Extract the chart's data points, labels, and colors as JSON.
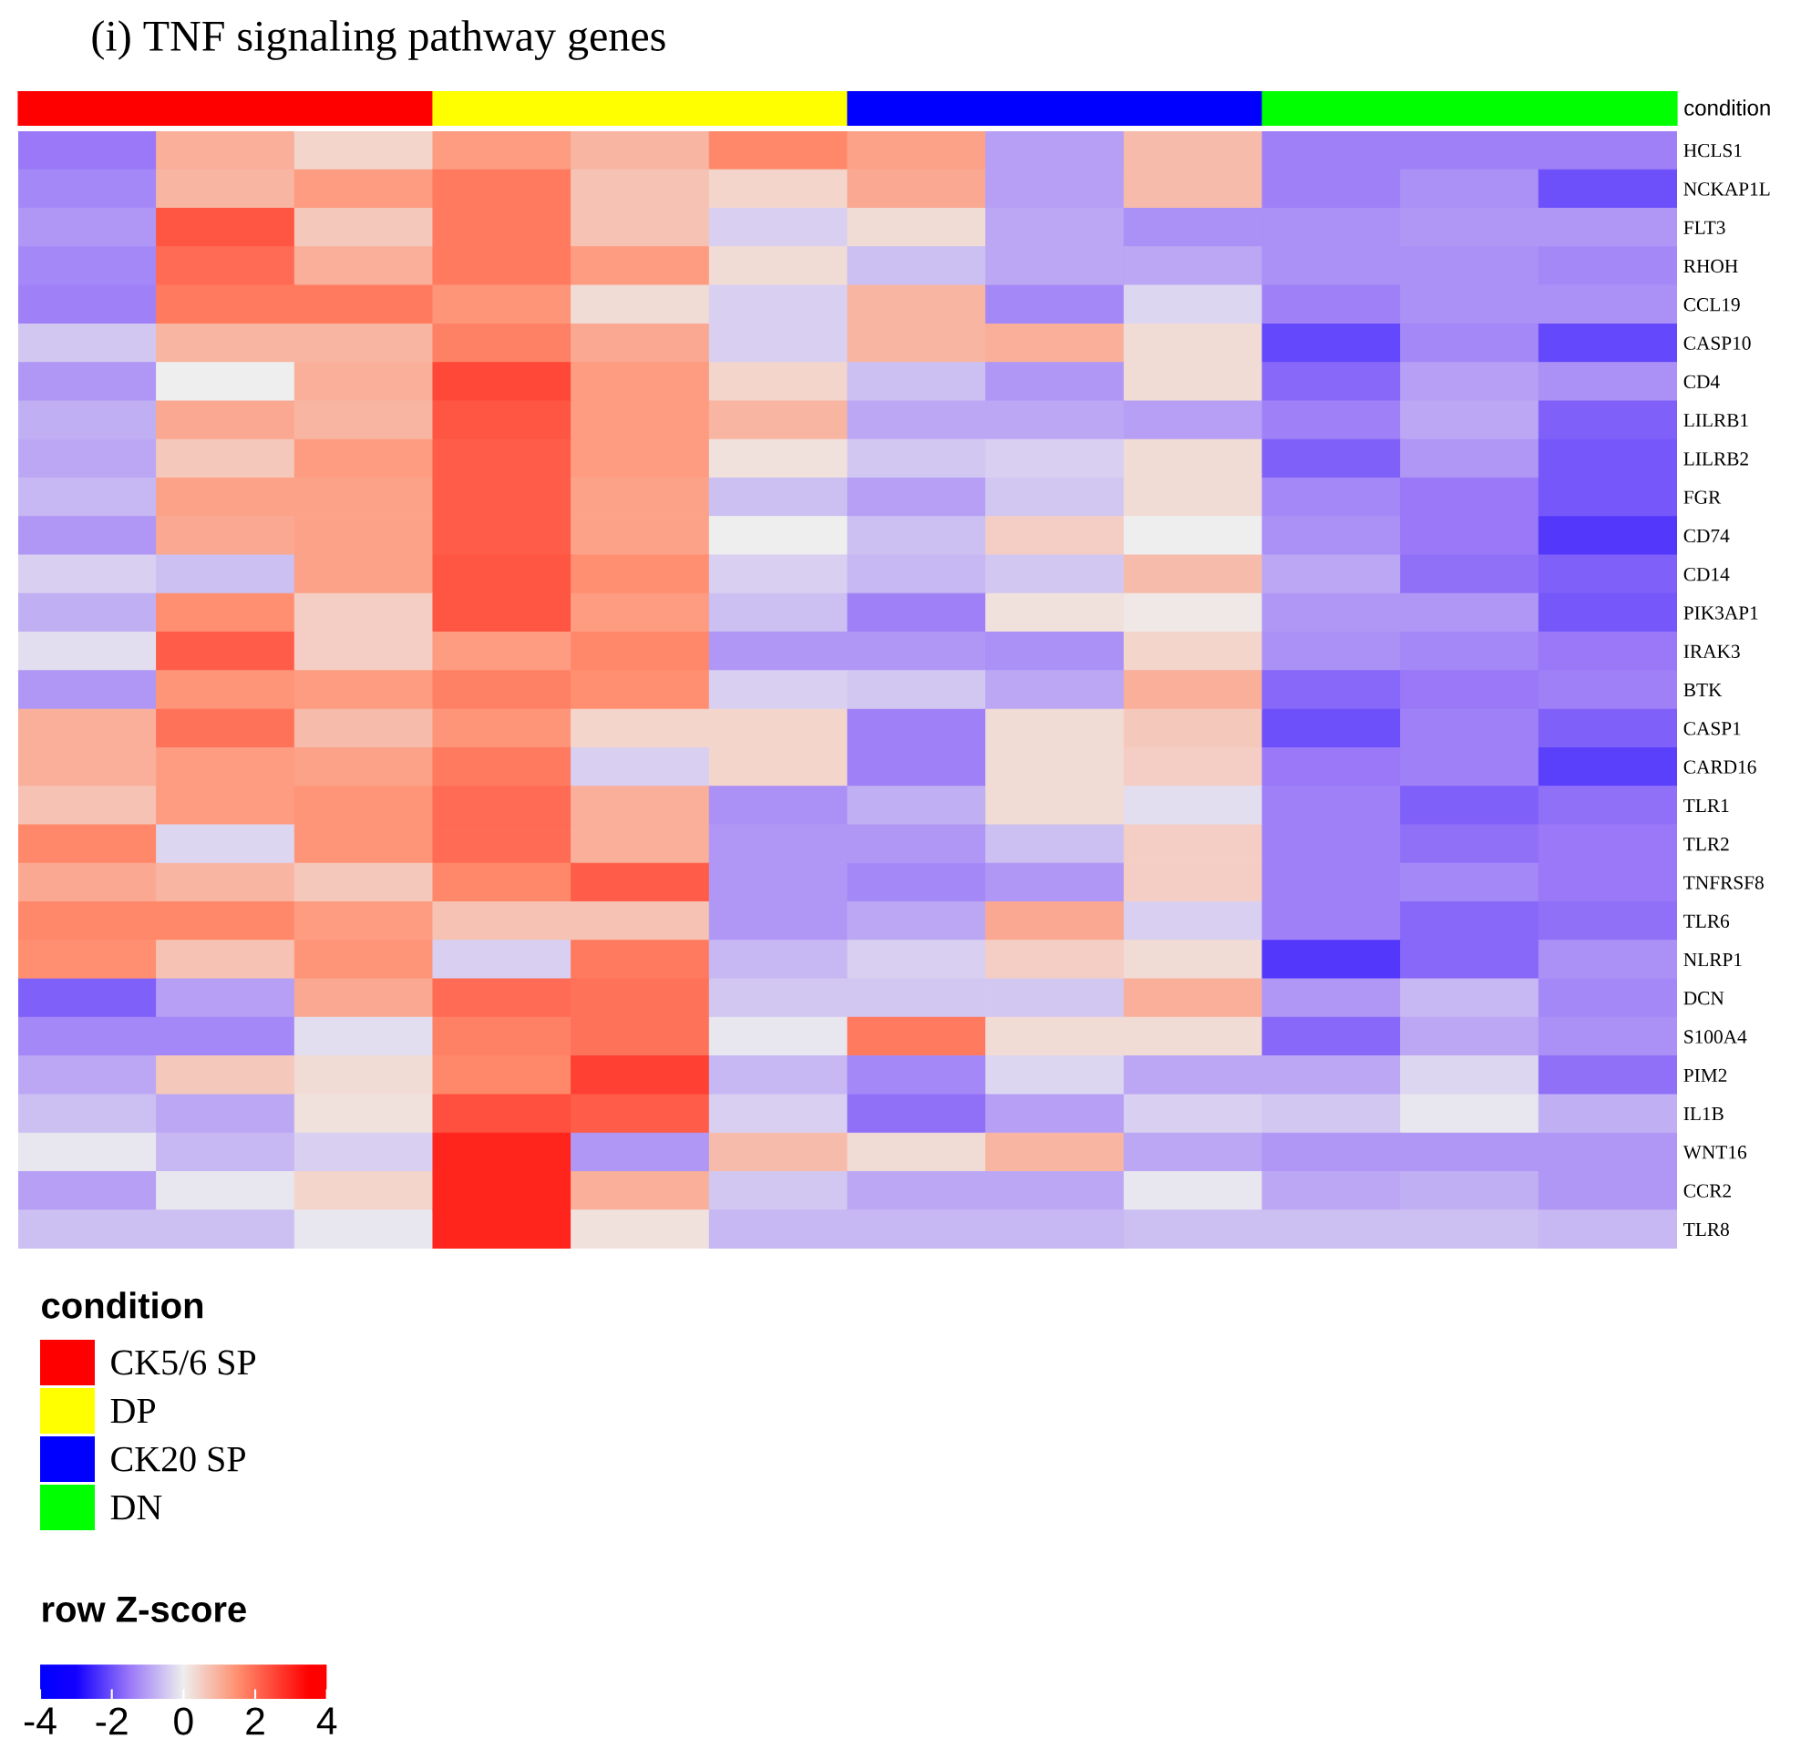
{
  "chart_data": [
    {
      "type": "heatmap",
      "title": "(i) TNF signaling pathway genes",
      "categories": [
        null,
        null,
        null,
        null,
        null,
        null,
        null,
        null,
        null,
        null,
        null,
        null
      ],
      "y_categories": [
        "HCLS1",
        "NCKAP1L",
        "FLT3",
        "RHOH",
        "CCL19",
        "CASP10",
        "CD4",
        "LILRB1",
        "LILRB2",
        "FGR",
        "CD74",
        "CD14",
        "PIK3AP1",
        "IRAK3",
        "BTK",
        "CASP1",
        "CARD16",
        "TLR1",
        "TLR2",
        "TNFRSF8",
        "TLR6",
        "NLRP1",
        "DCN",
        "S100A4",
        "PIM2",
        "IL1B",
        "WNT16",
        "CCR2",
        "TLR8"
      ],
      "cells": [
        [
          -1.5,
          1.0,
          0.4,
          1.3,
          0.9,
          1.6,
          1.2,
          -1.0,
          0.8,
          -1.4,
          -1.4,
          -1.4
        ],
        [
          -1.3,
          0.9,
          1.3,
          1.8,
          0.7,
          0.4,
          1.1,
          -1.0,
          0.8,
          -1.4,
          -1.2,
          -2.0
        ],
        [
          -1.1,
          2.3,
          0.6,
          1.8,
          0.7,
          -0.4,
          0.3,
          -0.9,
          -1.2,
          -1.2,
          -1.1,
          -1.1
        ],
        [
          -1.3,
          2.0,
          1.0,
          1.8,
          1.3,
          0.3,
          -0.6,
          -0.9,
          -0.9,
          -1.2,
          -1.2,
          -1.3
        ],
        [
          -1.4,
          1.8,
          1.8,
          1.4,
          0.3,
          -0.4,
          0.9,
          -1.3,
          -0.3,
          -1.4,
          -1.2,
          -1.2
        ],
        [
          -0.5,
          0.9,
          0.9,
          1.7,
          1.1,
          -0.4,
          0.9,
          1.0,
          0.3,
          -2.1,
          -1.3,
          -2.1
        ],
        [
          -1.1,
          0.0,
          1.0,
          2.5,
          1.3,
          0.4,
          -0.6,
          -1.1,
          0.3,
          -1.7,
          -1.0,
          -1.2
        ],
        [
          -0.8,
          1.1,
          0.9,
          2.3,
          1.3,
          0.9,
          -0.9,
          -0.9,
          -1.0,
          -1.4,
          -0.9,
          -1.8
        ],
        [
          -0.9,
          0.6,
          1.3,
          2.2,
          1.3,
          0.2,
          -0.5,
          -0.4,
          0.3,
          -1.8,
          -1.1,
          -1.9
        ],
        [
          -0.7,
          1.2,
          1.2,
          2.2,
          1.2,
          -0.6,
          -1.0,
          -0.5,
          0.3,
          -1.3,
          -1.5,
          -1.9
        ],
        [
          -1.1,
          1.1,
          1.2,
          2.2,
          1.2,
          0.0,
          -0.6,
          0.5,
          0.0,
          -1.2,
          -1.5,
          -2.3
        ],
        [
          -0.4,
          -0.6,
          1.2,
          2.3,
          1.5,
          -0.4,
          -0.7,
          -0.5,
          0.8,
          -0.9,
          -1.6,
          -1.8
        ],
        [
          -0.8,
          1.5,
          0.5,
          2.3,
          1.3,
          -0.6,
          -1.4,
          0.2,
          0.1,
          -1.1,
          -1.1,
          -1.9
        ],
        [
          -0.2,
          2.2,
          0.5,
          1.3,
          1.6,
          -1.1,
          -1.1,
          -1.2,
          0.4,
          -1.2,
          -1.3,
          -1.5
        ],
        [
          -1.1,
          1.4,
          1.3,
          1.7,
          1.5,
          -0.4,
          -0.5,
          -0.9,
          1.0,
          -1.7,
          -1.5,
          -1.4
        ],
        [
          1.0,
          1.9,
          0.8,
          1.4,
          0.4,
          0.4,
          -1.4,
          0.3,
          0.6,
          -2.0,
          -1.4,
          -1.8
        ],
        [
          1.0,
          1.3,
          1.2,
          1.8,
          -0.4,
          0.4,
          -1.4,
          0.3,
          0.5,
          -1.5,
          -1.4,
          -2.2
        ],
        [
          0.7,
          1.3,
          1.4,
          2.0,
          1.0,
          -1.2,
          -0.8,
          0.3,
          -0.2,
          -1.4,
          -1.8,
          -1.6
        ],
        [
          1.6,
          -0.3,
          1.4,
          2.0,
          1.0,
          -1.1,
          -1.1,
          -0.6,
          0.5,
          -1.4,
          -1.6,
          -1.5
        ],
        [
          1.1,
          0.9,
          0.6,
          1.6,
          2.2,
          -1.1,
          -1.3,
          -1.1,
          0.5,
          -1.4,
          -1.3,
          -1.5
        ],
        [
          1.6,
          1.6,
          1.3,
          0.7,
          0.7,
          -1.1,
          -0.9,
          1.1,
          -0.4,
          -1.4,
          -1.7,
          -1.6
        ],
        [
          1.5,
          0.7,
          1.4,
          -0.4,
          1.8,
          -0.7,
          -0.4,
          0.5,
          0.3,
          -2.3,
          -1.7,
          -1.2
        ],
        [
          -1.8,
          -1.0,
          1.1,
          2.0,
          1.9,
          -0.5,
          -0.5,
          -0.5,
          1.0,
          -1.1,
          -0.7,
          -1.3
        ],
        [
          -1.3,
          -1.3,
          -0.2,
          1.7,
          1.9,
          -0.1,
          1.8,
          0.3,
          0.3,
          -1.7,
          -0.9,
          -1.2
        ],
        [
          -0.9,
          0.6,
          0.3,
          1.6,
          2.6,
          -0.7,
          -1.3,
          -0.3,
          -0.9,
          -0.9,
          -0.3,
          -1.6
        ],
        [
          -0.6,
          -0.9,
          0.2,
          2.4,
          2.2,
          -0.4,
          -1.6,
          -1.0,
          -0.4,
          -0.5,
          -0.1,
          -0.8
        ],
        [
          -0.1,
          -0.7,
          -0.4,
          3.0,
          -1.1,
          0.8,
          0.3,
          0.9,
          -0.9,
          -1.1,
          -1.1,
          -1.1
        ],
        [
          -1.0,
          -0.1,
          0.4,
          3.0,
          1.0,
          -0.5,
          -0.9,
          -0.9,
          -0.1,
          -0.9,
          -0.8,
          -1.1
        ],
        [
          -0.6,
          -0.6,
          -0.1,
          3.0,
          0.2,
          -0.7,
          -0.7,
          -0.7,
          -0.6,
          -0.6,
          -0.6,
          -0.7
        ]
      ],
      "clabel": "row Z-score",
      "clim": [
        -4,
        4
      ],
      "cticks": [
        -4,
        -2,
        0,
        2,
        4
      ]
    },
    {
      "type": "other",
      "legend_title": "condition",
      "categories": [
        "CK5/6 SP",
        "DP",
        "CK20 SP",
        "DN"
      ],
      "colors": [
        "#ff0000",
        "#ffff00",
        "#0000ff",
        "#00ff00"
      ],
      "annotations": [
        "condition"
      ]
    }
  ]
}
